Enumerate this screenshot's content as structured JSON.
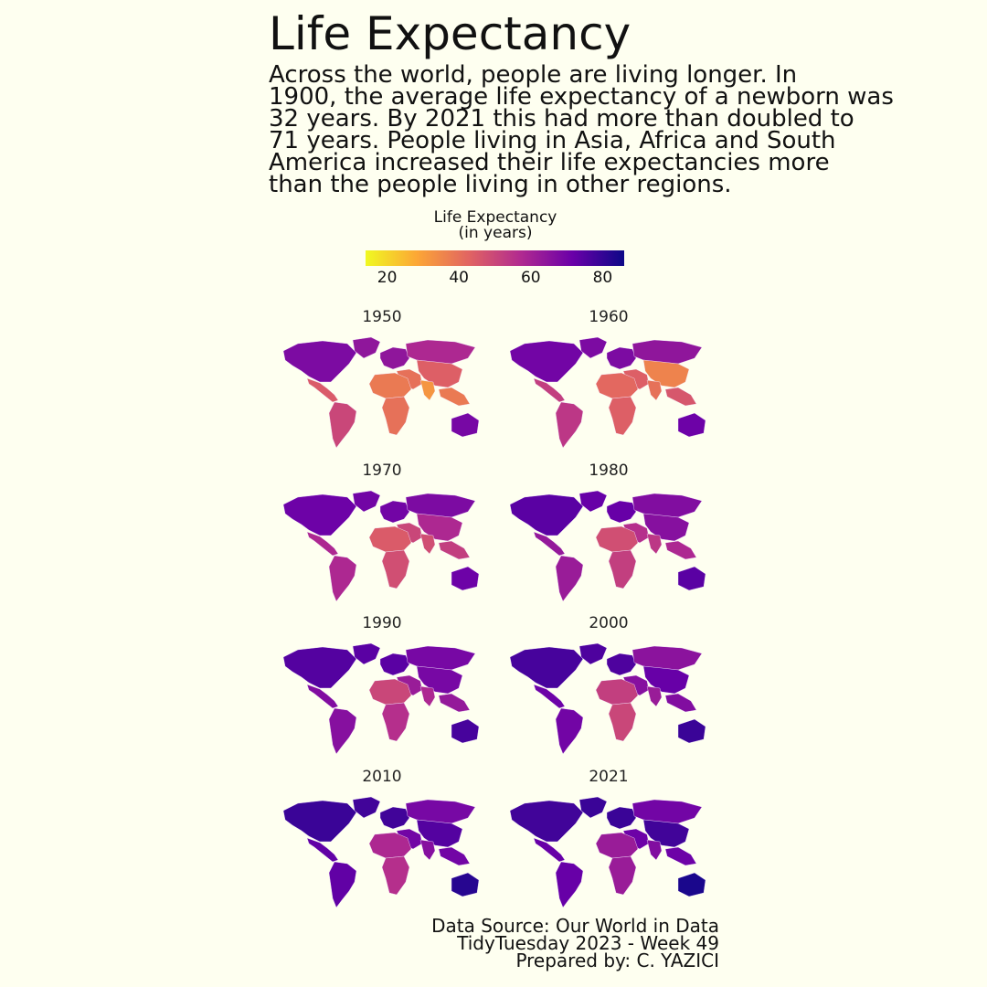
{
  "title": "Life Expectancy",
  "subtitle_lines": [
    "Across the world, people are living longer. In",
    "1900, the average life expectancy of a newborn was",
    "32 years. By 2021 this had more than doubled to",
    "71 years. People living in Asia, Africa and South",
    "America increased their life expectancies more",
    "than the people living in other regions."
  ],
  "legend": {
    "title_lines": [
      "Life Expectancy",
      "(in years)"
    ],
    "ticks": [
      20,
      40,
      60,
      80
    ],
    "range": [
      14,
      86
    ],
    "colors": [
      "#f0f921",
      "#fca636",
      "#e16462",
      "#b12a90",
      "#6a00a8",
      "#0d0887"
    ]
  },
  "panels": [
    {
      "year": "1950",
      "values": {
        "na": 68,
        "ca": 45,
        "sa": 50,
        "eu": 64,
        "ru": 58,
        "me": 40,
        "af": 38,
        "afs": 40,
        "as": 44,
        "in": 32,
        "sea": 38,
        "au": 69,
        "gl": 64
      }
    },
    {
      "year": "1960",
      "values": {
        "na": 70,
        "ca": 52,
        "sa": 54,
        "eu": 68,
        "ru": 64,
        "me": 44,
        "af": 42,
        "afs": 44,
        "as": 36,
        "in": 40,
        "sea": 46,
        "au": 71,
        "gl": 68
      }
    },
    {
      "year": "1970",
      "values": {
        "na": 71,
        "ca": 58,
        "sa": 58,
        "eu": 70,
        "ru": 68,
        "me": 50,
        "af": 45,
        "afs": 48,
        "as": 58,
        "in": 48,
        "sea": 52,
        "au": 71,
        "gl": 70
      }
    },
    {
      "year": "1980",
      "values": {
        "na": 74,
        "ca": 63,
        "sa": 62,
        "eu": 72,
        "ru": 67,
        "me": 56,
        "af": 48,
        "afs": 52,
        "as": 66,
        "in": 54,
        "sea": 58,
        "au": 74,
        "gl": 72
      }
    },
    {
      "year": "1990",
      "values": {
        "na": 75,
        "ca": 67,
        "sa": 66,
        "eu": 74,
        "ru": 69,
        "me": 62,
        "af": 50,
        "afs": 56,
        "as": 69,
        "in": 58,
        "sea": 63,
        "au": 77,
        "gl": 74
      }
    },
    {
      "year": "2000",
      "values": {
        "na": 77,
        "ca": 71,
        "sa": 70,
        "eu": 76,
        "ru": 65,
        "me": 66,
        "af": 52,
        "afs": 50,
        "as": 72,
        "in": 62,
        "sea": 67,
        "au": 79,
        "gl": 76
      }
    },
    {
      "year": "2010",
      "values": {
        "na": 79,
        "ca": 73,
        "sa": 73,
        "eu": 78,
        "ru": 69,
        "me": 70,
        "af": 58,
        "afs": 56,
        "as": 75,
        "in": 66,
        "sea": 70,
        "au": 82,
        "gl": 78
      }
    },
    {
      "year": "2021",
      "values": {
        "na": 78,
        "ca": 72,
        "sa": 72,
        "eu": 79,
        "ru": 70,
        "me": 71,
        "af": 62,
        "afs": 62,
        "as": 78,
        "in": 67,
        "sea": 71,
        "au": 84,
        "gl": 79
      }
    }
  ],
  "caption_lines": [
    "Data Source: Our World in Data",
    "TidyTuesday 2023 - Week 49",
    "Prepared by: C. YAZICI"
  ]
}
